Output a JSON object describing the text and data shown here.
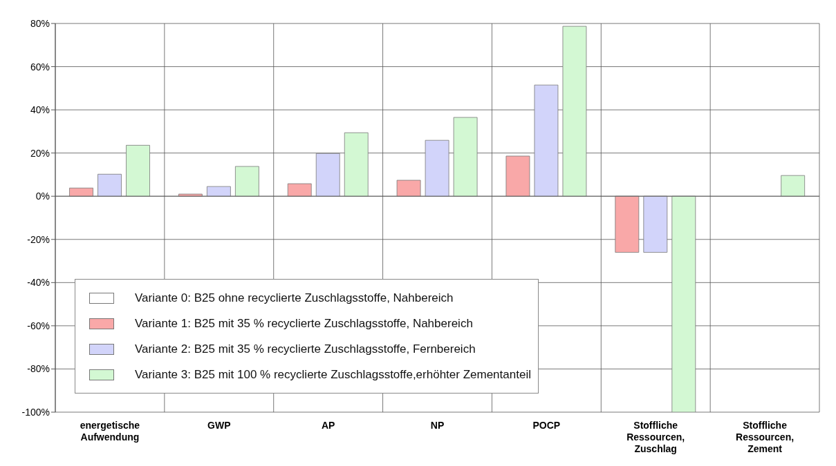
{
  "chart_data": {
    "type": "bar",
    "categories": [
      "energetische Aufwendung",
      "GWP",
      "AP",
      "NP",
      "POCP",
      "Stoffliche Ressourcen, Zuschlag",
      "Stoffliche Ressourcen, Zement"
    ],
    "series": [
      {
        "name": "Variante 0: B25 ohne recyclierte Zuschlagsstoffe, Nahbereich",
        "color": "#ffffff",
        "values": [
          null,
          null,
          null,
          null,
          null,
          null,
          null
        ]
      },
      {
        "name": "Variante 1: B25 mit 35 % recyclierte Zuschlagsstoffe, Nahbereich",
        "color": "#f9a8a8",
        "values": [
          3.8,
          1,
          5.8,
          7.4,
          18.6,
          -26,
          0
        ]
      },
      {
        "name": "Variante 2: B25 mit 35 % recyclierte Zuschlagsstoffe, Fernbereich",
        "color": "#d2d4fa",
        "values": [
          10.2,
          4.5,
          19.8,
          25.9,
          51.5,
          -26,
          0
        ]
      },
      {
        "name": "Variante 3: B25 mit 100 % recyclierte Zuschlagsstoffe,erhöhter Zementanteil",
        "color": "#d3f8d3",
        "values": [
          23.6,
          13.8,
          29.4,
          36.5,
          78.7,
          -100,
          9.6
        ]
      }
    ],
    "ylim": [
      -100,
      80
    ],
    "yticks": [
      {
        "value": -100,
        "label": "-100%"
      },
      {
        "value": -80,
        "label": "-80%"
      },
      {
        "value": -60,
        "label": "-60%"
      },
      {
        "value": -40,
        "label": "-40%"
      },
      {
        "value": -20,
        "label": "-20%"
      },
      {
        "value": 0,
        "label": "0%"
      },
      {
        "value": 20,
        "label": "20%"
      },
      {
        "value": 40,
        "label": "40%"
      },
      {
        "value": 60,
        "label": "60%"
      },
      {
        "value": 80,
        "label": "80%"
      }
    ],
    "grid": true,
    "legend": "bottom left"
  }
}
